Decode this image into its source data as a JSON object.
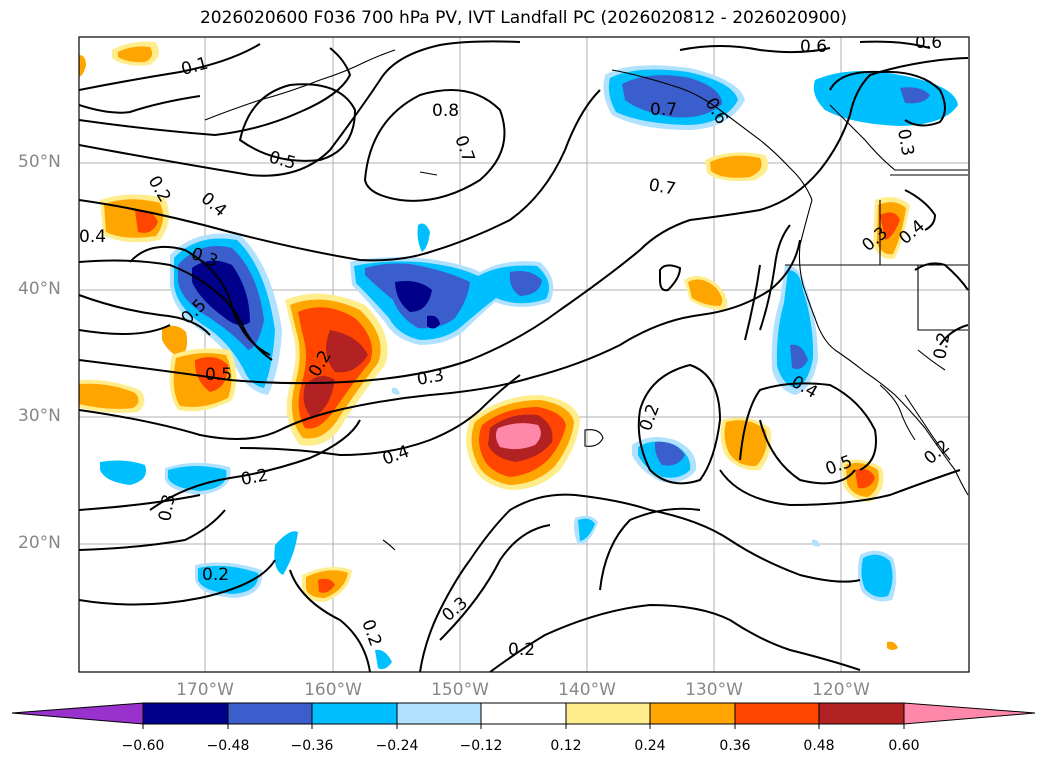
{
  "title": "2026020600 F036 700 hPa PV, IVT Landfall PC (2026020812 - 2026020900)",
  "lat_labels": [
    "50°N",
    "40°N",
    "30°N",
    "20°N"
  ],
  "lon_labels": [
    "170°W",
    "160°W",
    "150°W",
    "140°W",
    "130°W",
    "120°W"
  ],
  "colorbar": {
    "ticks": [
      "−0.60",
      "−0.48",
      "−0.36",
      "−0.24",
      "−0.12",
      "0.12",
      "0.24",
      "0.36",
      "0.48",
      "0.60"
    ],
    "colors": [
      "#9932cc",
      "#00008b",
      "#3a5fcd",
      "#00bfff",
      "#b0e2ff",
      "#ffffff",
      "#ffec8b",
      "#ffa500",
      "#ff4500",
      "#b22222",
      "#ff88aa"
    ]
  },
  "contour_labels": [
    "0.1",
    "0.6",
    "0.6",
    "0.8",
    "0.7",
    "0.5",
    "0.7",
    "0.6",
    "0.7",
    "0.3",
    "0.2",
    "0.4",
    "0.4",
    "0.5",
    "0.3",
    "0.5",
    "0.3",
    "0.4",
    "0.2",
    "0.3",
    "0.4",
    "0.2",
    "0.2",
    "0.3",
    "0.3",
    "0.2",
    "0.2",
    "0.2",
    "0.4",
    "0.5",
    "0.2",
    "0.2"
  ]
}
